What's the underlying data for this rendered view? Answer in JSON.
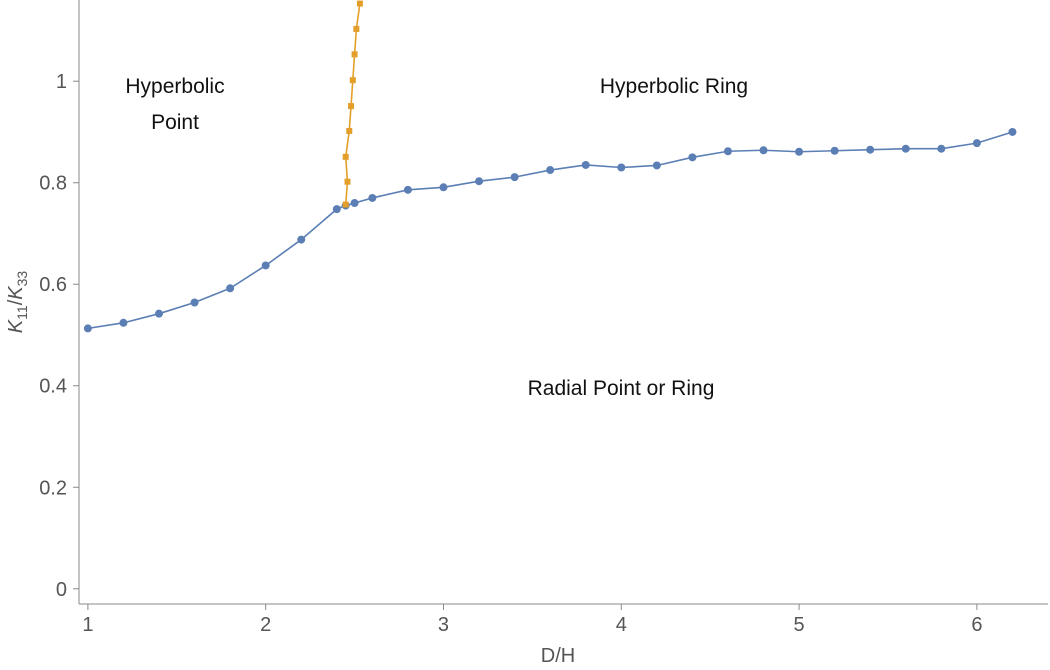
{
  "chart_data": {
    "type": "line",
    "xlabel": "D/H",
    "ylabel": {
      "k": "K",
      "sub1": "11",
      "slash": "/",
      "sub2": "33"
    },
    "xlim": [
      0.95,
      6.4
    ],
    "ylim": [
      -0.03,
      1.16
    ],
    "xticks": [
      "1",
      "2",
      "3",
      "4",
      "5",
      "6"
    ],
    "yticks": [
      "0",
      "0.2",
      "0.4",
      "0.6",
      "0.8",
      "1"
    ],
    "grid": false,
    "annotations": [
      {
        "id": "hp1",
        "text": "Hyperbolic"
      },
      {
        "id": "hp2",
        "text": "Point"
      },
      {
        "id": "hr",
        "text": "Hyperbolic Ring"
      },
      {
        "id": "rp",
        "text": "Radial Point or Ring"
      }
    ],
    "series": [
      {
        "color": "#5b7fb4",
        "marker": "circle",
        "x": [
          1.0,
          1.2,
          1.4,
          1.6,
          1.8,
          2.0,
          2.2,
          2.4,
          2.45,
          2.5,
          2.6,
          2.8,
          3.0,
          3.2,
          3.4,
          3.6,
          3.8,
          4.0,
          4.2,
          4.4,
          4.6,
          4.8,
          5.0,
          5.2,
          5.4,
          5.6,
          5.8,
          6.0,
          6.2
        ],
        "y": [
          0.513,
          0.524,
          0.542,
          0.564,
          0.592,
          0.637,
          0.688,
          0.748,
          0.755,
          0.76,
          0.77,
          0.786,
          0.791,
          0.803,
          0.811,
          0.825,
          0.835,
          0.83,
          0.834,
          0.85,
          0.862,
          0.864,
          0.861,
          0.863,
          0.865,
          0.867,
          0.867,
          0.878,
          0.9
        ]
      },
      {
        "color": "#e39f2a",
        "marker": "square",
        "x": [
          2.45,
          2.46,
          2.45,
          2.47,
          2.48,
          2.49,
          2.5,
          2.51,
          2.53
        ],
        "y": [
          0.757,
          0.802,
          0.851,
          0.902,
          0.951,
          1.002,
          1.053,
          1.103,
          1.153
        ]
      }
    ]
  }
}
